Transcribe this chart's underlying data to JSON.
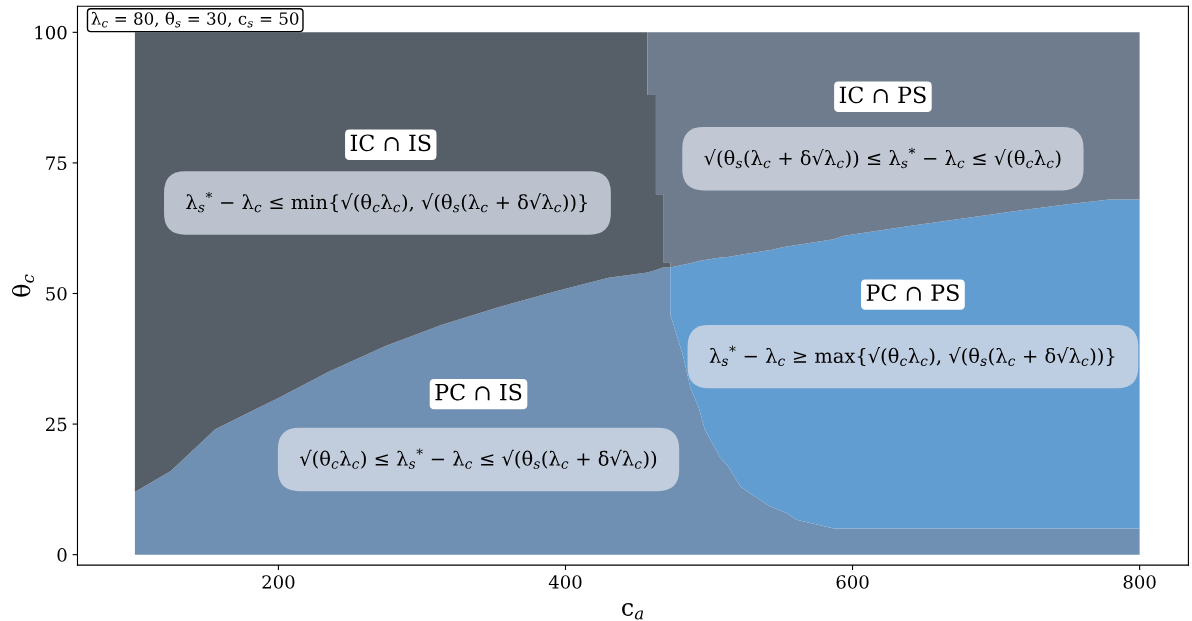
{
  "chart_data": {
    "type": "area",
    "stacked": true,
    "xlabel": "c$_{a}$",
    "ylabel": "θ$_{c}$",
    "xlim": [
      60,
      834
    ],
    "ylim": [
      -2,
      105
    ],
    "xticks": [
      200,
      400,
      600,
      800
    ],
    "yticks": [
      0,
      25,
      50,
      75,
      100
    ],
    "grid": false,
    "legend": false,
    "x": [
      100,
      125,
      156,
      200,
      235,
      275,
      314,
      355,
      394,
      430,
      457,
      457,
      463,
      463,
      468,
      468,
      473,
      473,
      482,
      487,
      493,
      497,
      508,
      513,
      522,
      542,
      554,
      561,
      587,
      593,
      642,
      693,
      747,
      779,
      800
    ],
    "series": [
      {
        "color": "#6f8fb3",
        "values": [
          12,
          16,
          24,
          30,
          35,
          40,
          44,
          47.5,
          50.5,
          53,
          54,
          54,
          54.5,
          54.5,
          55,
          55,
          55,
          46,
          38,
          32,
          28,
          24,
          18.5,
          17,
          13,
          9.3,
          8,
          6.7,
          5,
          5,
          5,
          5,
          5,
          5,
          5
        ]
      },
      {
        "color": "#629dd1",
        "values": [
          0,
          0,
          0,
          0,
          0,
          0,
          0,
          0,
          0,
          0,
          0,
          0,
          0,
          0,
          0,
          0,
          0,
          9,
          17.5,
          23.8,
          28.2,
          32.4,
          38.4,
          40,
          44.4,
          49,
          51,
          52.6,
          55.4,
          56,
          58,
          60,
          62,
          63,
          63
        ]
      },
      {
        "color": "#565e68",
        "values": [
          88,
          84,
          76,
          70,
          65,
          60,
          56,
          52.5,
          49.5,
          47,
          46,
          34,
          33.5,
          14.5,
          14,
          1,
          1,
          0,
          0,
          0,
          0,
          0,
          0,
          0,
          0,
          0,
          0,
          0,
          0,
          0,
          0,
          0,
          0,
          0,
          0
        ]
      },
      {
        "color": "#6e7c8e",
        "values": [
          0,
          0,
          0,
          0,
          0,
          0,
          0,
          0,
          0,
          0,
          0,
          12,
          12,
          31,
          31,
          44,
          44,
          45,
          44.5,
          44.2,
          43.8,
          43.6,
          43.1,
          43,
          42.6,
          41.7,
          41,
          40.7,
          39.6,
          39,
          37,
          35,
          33,
          32,
          32
        ]
      }
    ],
    "annotations": [
      "λ$_{c}$ = 80, θ$_{s}$ = 30, c$_{s}$ = 50",
      "IC ∩ IS",
      "λ$_{s}$$^{*}$ − λ$_{c}$ ≤ min{√(θ$_{c}$λ$_{c}$), √(θ$_{s}$(λ$_{c}$ + δ√λ$_{c}$))}",
      "IC ∩ PS",
      "√(θ$_{s}$(λ$_{c}$ + δ√λ$_{c}$)) ≤ λ$_{s}$$^{*}$ − λ$_{c}$ ≤ √(θ$_{c}$λ$_{c}$)",
      "PC ∩ PS",
      "λ$_{s}$$^{*}$ − λ$_{c}$ ≥ max{√(θ$_{c}$λ$_{c}$), √(θ$_{s}$(λ$_{c}$ + δ√λ$_{c}$))}",
      "PC ∩ IS",
      "√(θ$_{c}$λ$_{c}$) ≤ λ$_{s}$$^{*}$ − λ$_{c}$ ≤ √(θ$_{s}$(λ$_{c}$ + δ√λ$_{c}$))"
    ]
  }
}
